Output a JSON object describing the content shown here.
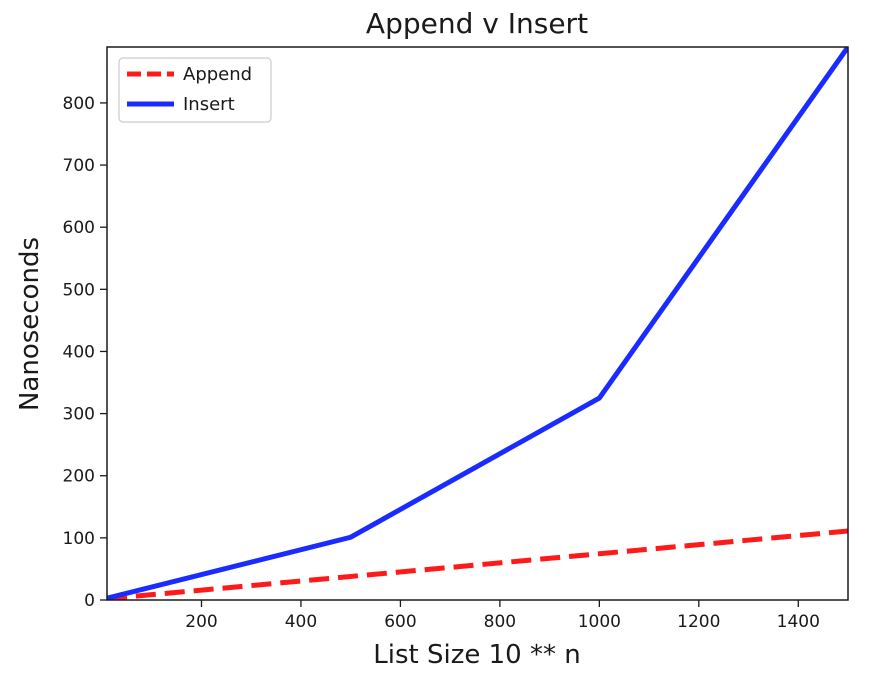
{
  "chart_data": {
    "type": "line",
    "title": "Append v Insert",
    "xlabel": "List Size 10 ** n",
    "ylabel": "Nanoseconds",
    "xlim": [
      10,
      1500
    ],
    "ylim": [
      0,
      890
    ],
    "xticks": [
      200,
      400,
      600,
      800,
      1000,
      1200,
      1400
    ],
    "yticks": [
      0,
      100,
      200,
      300,
      400,
      500,
      600,
      700,
      800
    ],
    "grid": false,
    "legend_position": "top-left",
    "series": [
      {
        "name": "Append",
        "color": "#ff1a1a",
        "style": "dashed",
        "x": [
          10,
          1500
        ],
        "y": [
          2,
          111
        ]
      },
      {
        "name": "Insert",
        "color": "#1a2bff",
        "style": "solid",
        "x": [
          10,
          500,
          1000,
          1500
        ],
        "y": [
          3,
          101,
          325,
          890
        ]
      }
    ]
  }
}
